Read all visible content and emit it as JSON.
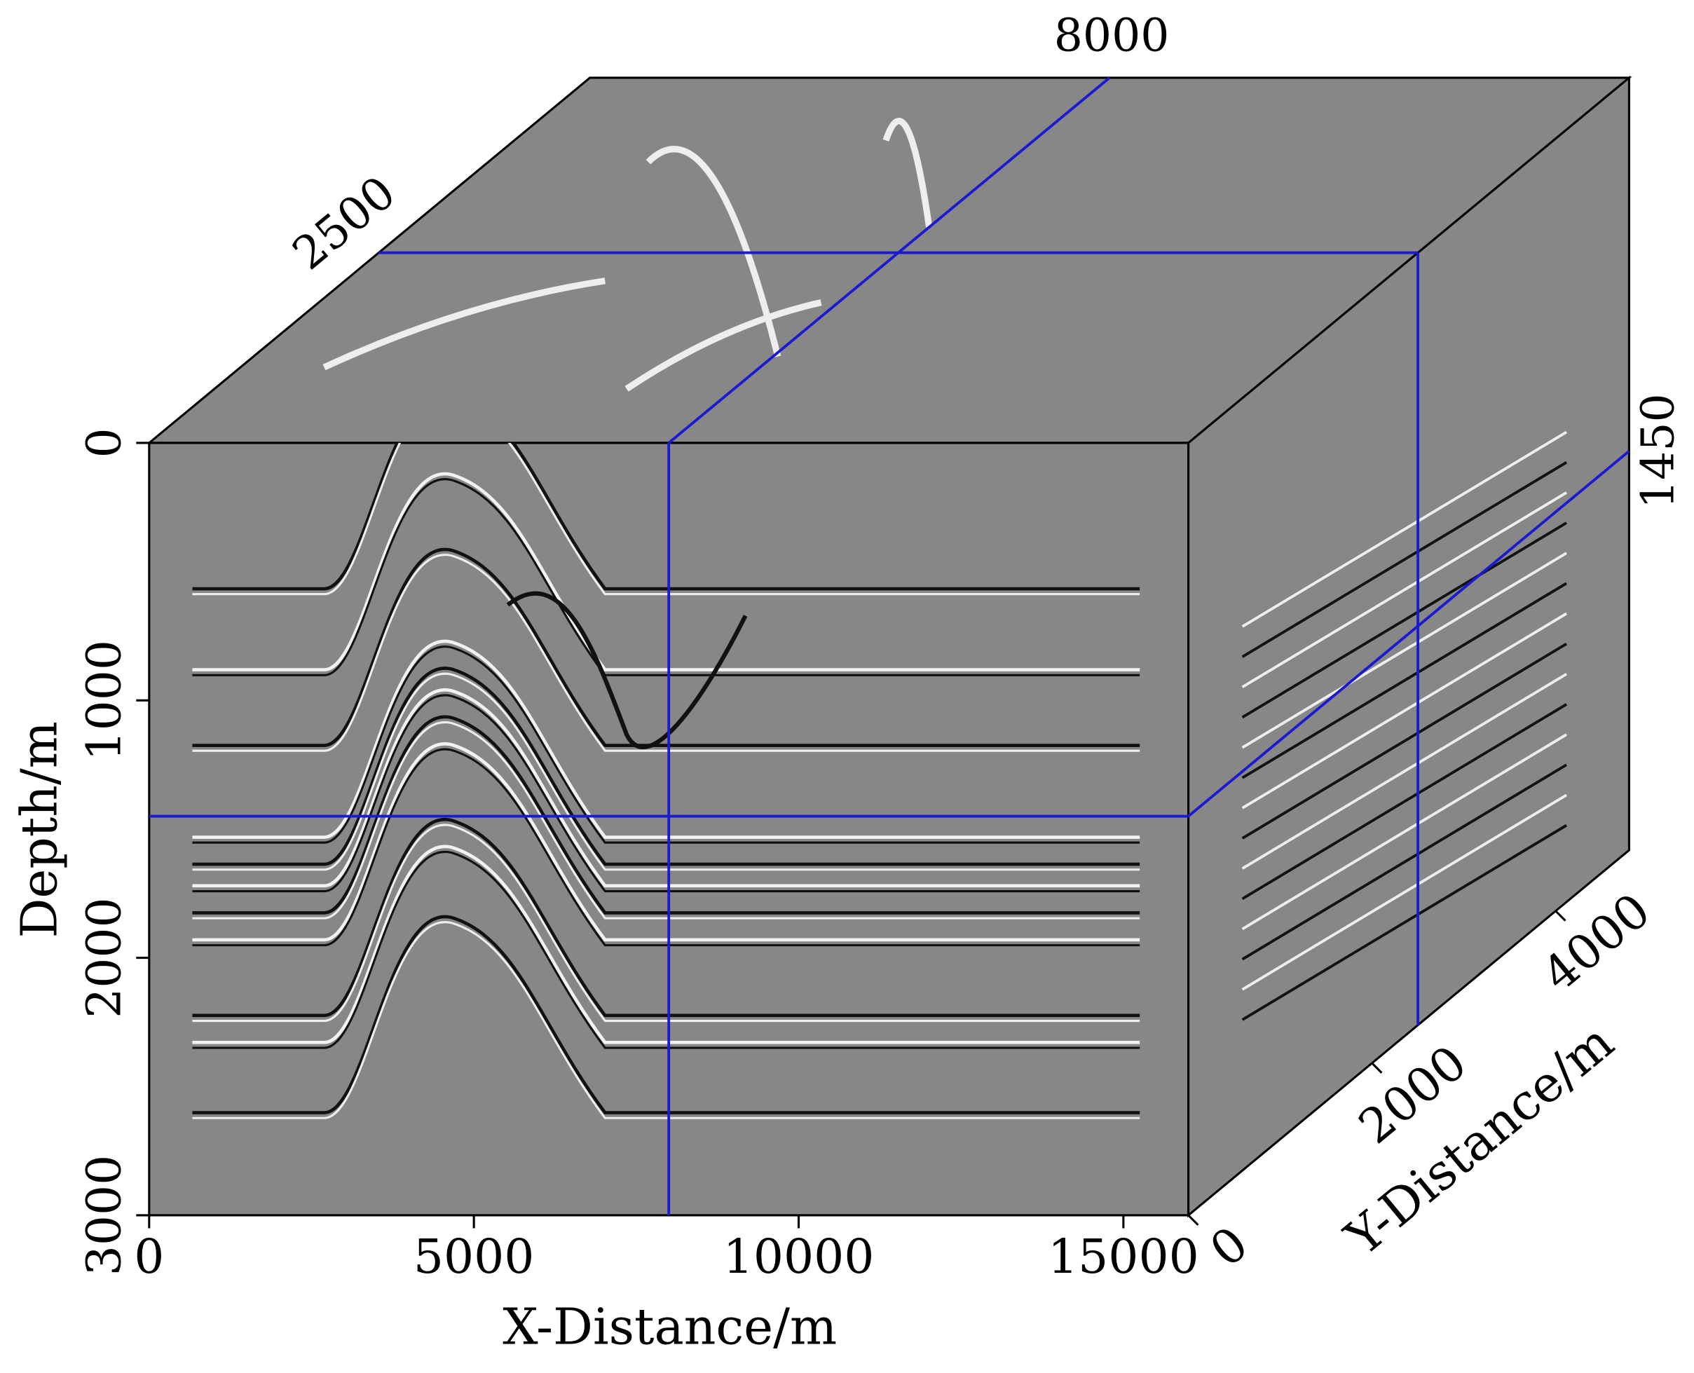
{
  "chart_data": {
    "type": "cube",
    "xlabel": "X-Distance/m",
    "ylabel": "Depth/m",
    "zlabel": "Y-Distance/m",
    "xlim": [
      0,
      16000
    ],
    "xticks": [
      0,
      5000,
      10000,
      15000
    ],
    "ylim": [
      0,
      3000
    ],
    "yticks": [
      0,
      1000,
      2000,
      3000
    ],
    "zlim": [
      0,
      4800
    ],
    "zticks": [
      0,
      2000,
      4000
    ],
    "slices": {
      "x": 8000,
      "y": 1450,
      "z": 2500
    },
    "slice_color": "#1a1ad0",
    "face_color": "#878787"
  }
}
